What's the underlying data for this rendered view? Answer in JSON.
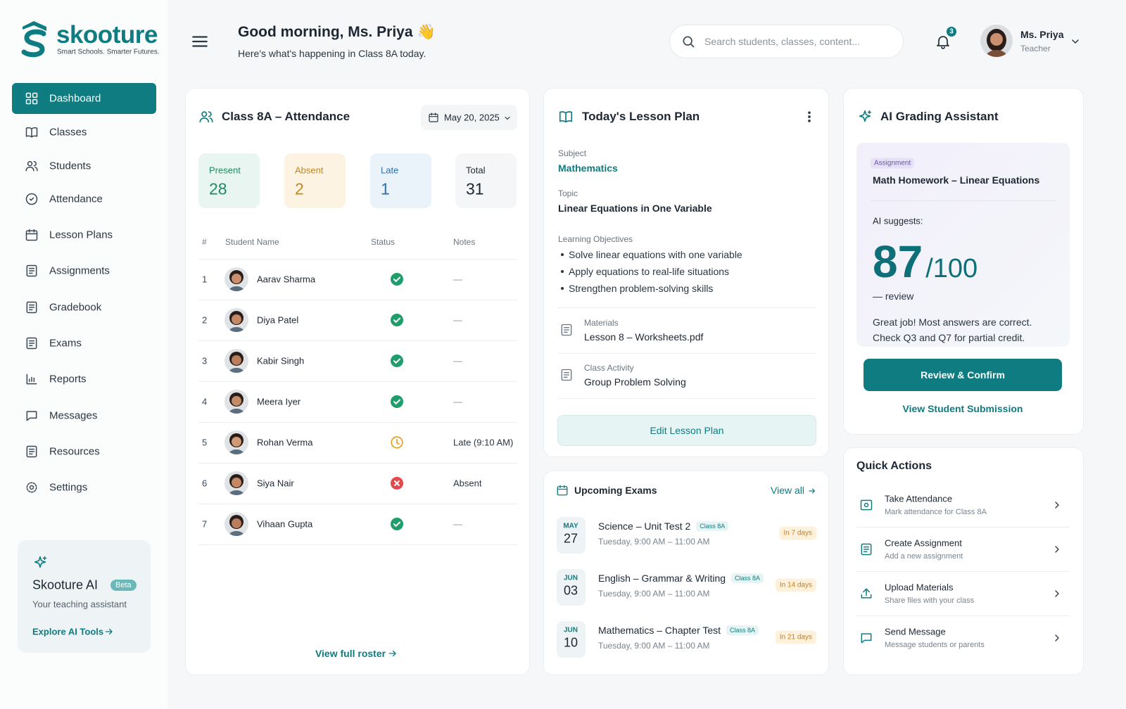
{
  "brand": {
    "name": "skooture",
    "tagline": "Smart Schools. Smarter Futures."
  },
  "nav": {
    "items": [
      "Dashboard",
      "Classes",
      "Students",
      "Attendance",
      "Lesson Plans",
      "Assignments",
      "Gradebook",
      "Exams",
      "Reports",
      "Messages",
      "Resources",
      "Settings"
    ],
    "active": "Dashboard"
  },
  "ai_promo": {
    "title": "Skooture AI",
    "badge": "Beta",
    "subtitle": "Your teaching assistant",
    "link": "Explore AI Tools"
  },
  "header": {
    "greeting": "Good morning, Ms. Priya",
    "greeting_emoji": "👋",
    "subtitle": "Here's what's happening in Class 8A today.",
    "search_placeholder": "Search students, classes, content...",
    "notifications": 3,
    "user": {
      "name": "Ms. Priya",
      "role": "Teacher"
    }
  },
  "attendance": {
    "title": "Class 8A – Attendance",
    "date": "May 20, 2025",
    "stats": [
      {
        "label": "Present",
        "value": 28
      },
      {
        "label": "Absent",
        "value": 2
      },
      {
        "label": "Late",
        "value": 1
      },
      {
        "label": "Total",
        "value": 31
      }
    ],
    "columns": [
      "#",
      "Student Name",
      "Status",
      "Notes"
    ],
    "rows": [
      {
        "number": 1,
        "name": "Aarav Sharma",
        "status": "present",
        "notes": "—"
      },
      {
        "number": 2,
        "name": "Diya Patel",
        "status": "present",
        "notes": "—"
      },
      {
        "number": 3,
        "name": "Kabir Singh",
        "status": "present",
        "notes": "—"
      },
      {
        "number": 4,
        "name": "Meera Iyer",
        "status": "present",
        "notes": "—"
      },
      {
        "number": 5,
        "name": "Rohan Verma",
        "status": "late",
        "notes": "Late (9:10 AM)"
      },
      {
        "number": 6,
        "name": "Siya Nair",
        "status": "absent",
        "notes": "Absent"
      },
      {
        "number": 7,
        "name": "Vihaan Gupta",
        "status": "present",
        "notes": "—"
      }
    ],
    "footer_link": "View full roster"
  },
  "lesson_plan": {
    "title": "Today's Lesson Plan",
    "subject_label": "Subject",
    "subject": "Mathematics",
    "topic_label": "Topic",
    "topic": "Linear Equations in One Variable",
    "objectives_label": "Learning Objectives",
    "objectives": [
      "Solve linear equations with one variable",
      "Apply equations to real-life situations",
      "Strengthen problem-solving skills"
    ],
    "materials_label": "Materials",
    "materials": "Lesson 8 – Worksheets.pdf",
    "activity_label": "Class Activity",
    "activity": "Group Problem Solving",
    "button": "Edit Lesson Plan"
  },
  "exams": {
    "title": "Upcoming Exams",
    "view_all": "View all",
    "items": [
      {
        "month": "MAY",
        "day": "27",
        "name": "Science – Unit Test 2",
        "class": "Class 8A",
        "time": "Tuesday, 9:00 AM – 11:00 AM",
        "due": "In 7 days"
      },
      {
        "month": "JUN",
        "day": "03",
        "name": "English – Grammar & Writing",
        "class": "Class 8A",
        "time": "Tuesday, 9:00 AM – 11:00 AM",
        "due": "In 14 days"
      },
      {
        "month": "JUN",
        "day": "10",
        "name": "Mathematics – Chapter Test",
        "class": "Class 8A",
        "time": "Tuesday, 9:00 AM – 11:00 AM",
        "due": "In 21 days"
      }
    ]
  },
  "grading": {
    "title": "AI Grading Assistant",
    "tag": "Assignment",
    "assignment": "Math Homework – Linear Equations",
    "suggests_label": "AI suggests:",
    "score": 87,
    "max": "/100",
    "review": "— review",
    "feedback": [
      "Great job! Most answers are correct.",
      "Check Q3 and Q7 for partial credit."
    ],
    "button": "Review & Confirm",
    "link": "View Student Submission"
  },
  "quick_actions": {
    "title": "Quick Actions",
    "items": [
      {
        "title": "Take Attendance",
        "subtitle": "Mark attendance for Class 8A"
      },
      {
        "title": "Create Assignment",
        "subtitle": "Add a new assignment"
      },
      {
        "title": "Upload Materials",
        "subtitle": "Share files with your class"
      },
      {
        "title": "Send Message",
        "subtitle": "Message students or parents"
      }
    ]
  }
}
